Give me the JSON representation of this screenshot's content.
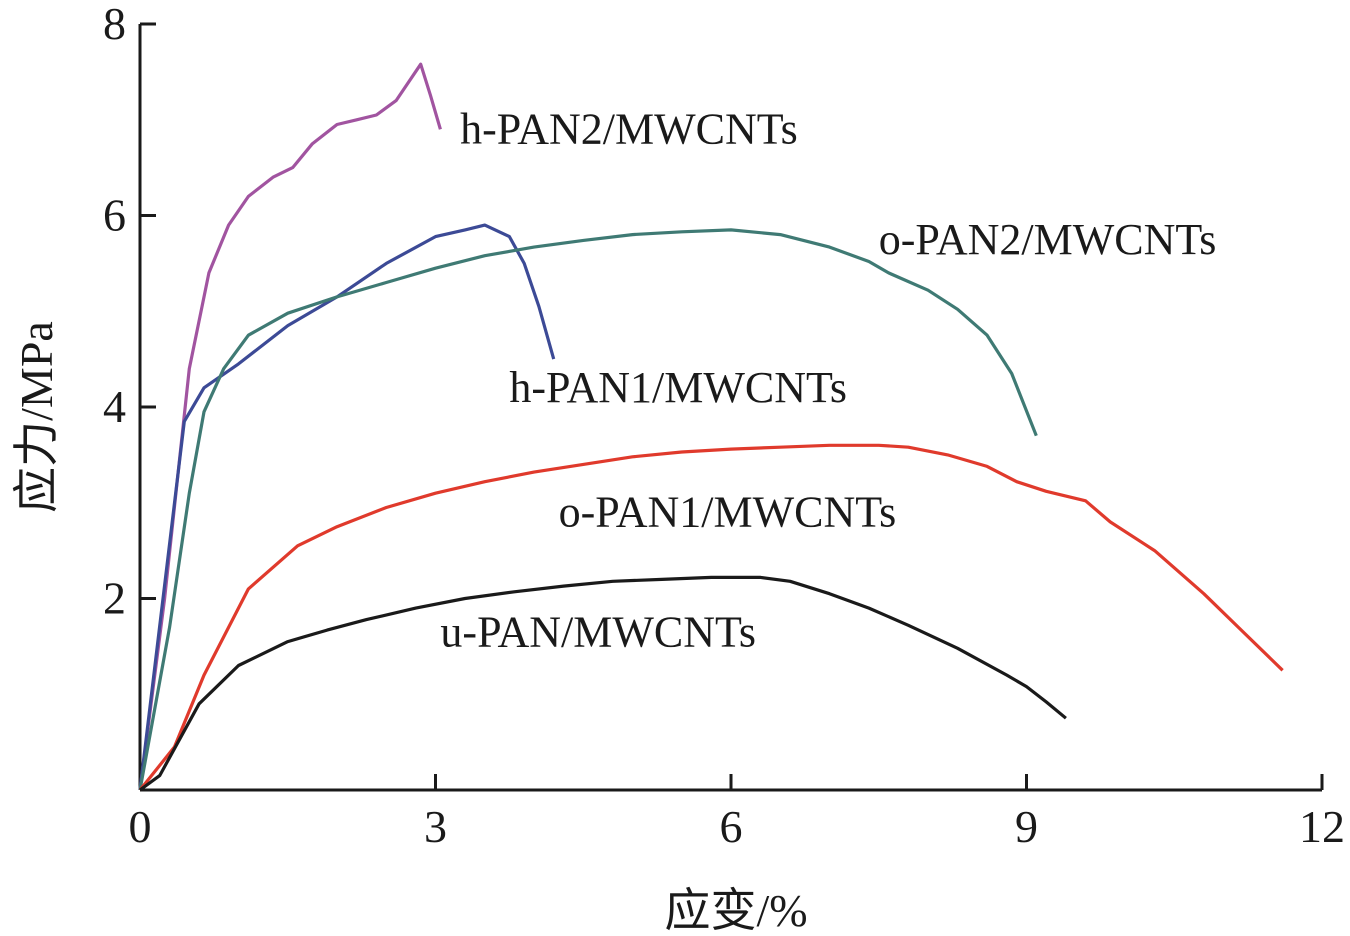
{
  "chart_data": {
    "type": "line",
    "title": "",
    "xlabel": "应变/%",
    "ylabel": "应力/MPa",
    "xlim": [
      0,
      12
    ],
    "ylim": [
      0,
      8
    ],
    "xticks": [
      0,
      3,
      6,
      9,
      12
    ],
    "yticks": [
      2,
      4,
      6,
      8
    ],
    "x_origin_label": "0",
    "grid": false,
    "legend": "inline labels",
    "series": [
      {
        "name": "h-PAN2/MWCNTs",
        "color": "#a154a0",
        "label_at": [
          3.25,
          6.75
        ],
        "points": [
          [
            0,
            0
          ],
          [
            0.25,
            2.0
          ],
          [
            0.5,
            4.4
          ],
          [
            0.7,
            5.4
          ],
          [
            0.9,
            5.9
          ],
          [
            1.1,
            6.2
          ],
          [
            1.35,
            6.4
          ],
          [
            1.55,
            6.5
          ],
          [
            1.75,
            6.75
          ],
          [
            2.0,
            6.95
          ],
          [
            2.2,
            7.0
          ],
          [
            2.4,
            7.05
          ],
          [
            2.6,
            7.2
          ],
          [
            2.85,
            7.58
          ],
          [
            2.95,
            7.25
          ],
          [
            3.05,
            6.9
          ]
        ]
      },
      {
        "name": "h-PAN1/MWCNTs",
        "color": "#3c4a96",
        "label_at": [
          3.75,
          4.05
        ],
        "points": [
          [
            0,
            0
          ],
          [
            0.45,
            3.85
          ],
          [
            0.65,
            4.2
          ],
          [
            1.0,
            4.45
          ],
          [
            1.5,
            4.85
          ],
          [
            2.0,
            5.15
          ],
          [
            2.5,
            5.5
          ],
          [
            3.0,
            5.78
          ],
          [
            3.3,
            5.85
          ],
          [
            3.5,
            5.9
          ],
          [
            3.75,
            5.78
          ],
          [
            3.9,
            5.5
          ],
          [
            4.05,
            5.05
          ],
          [
            4.2,
            4.5
          ]
        ]
      },
      {
        "name": "o-PAN2/MWCNTs",
        "color": "#3f7a74",
        "label_at": [
          7.5,
          5.6
        ],
        "points": [
          [
            0,
            0
          ],
          [
            0.3,
            1.7
          ],
          [
            0.5,
            3.1
          ],
          [
            0.65,
            3.95
          ],
          [
            0.85,
            4.4
          ],
          [
            1.1,
            4.75
          ],
          [
            1.5,
            4.98
          ],
          [
            2.0,
            5.15
          ],
          [
            2.5,
            5.3
          ],
          [
            3.0,
            5.45
          ],
          [
            3.5,
            5.58
          ],
          [
            4.0,
            5.67
          ],
          [
            4.5,
            5.74
          ],
          [
            5.0,
            5.8
          ],
          [
            5.5,
            5.83
          ],
          [
            6.0,
            5.85
          ],
          [
            6.5,
            5.8
          ],
          [
            7.0,
            5.67
          ],
          [
            7.4,
            5.52
          ],
          [
            7.6,
            5.4
          ],
          [
            8.0,
            5.22
          ],
          [
            8.3,
            5.02
          ],
          [
            8.6,
            4.75
          ],
          [
            8.85,
            4.35
          ],
          [
            9.1,
            3.7
          ]
        ]
      },
      {
        "name": "o-PAN1/MWCNTs",
        "color": "#e03a2c",
        "label_at": [
          4.25,
          2.75
        ],
        "points": [
          [
            0,
            0
          ],
          [
            0.35,
            0.45
          ],
          [
            0.65,
            1.2
          ],
          [
            1.1,
            2.1
          ],
          [
            1.6,
            2.55
          ],
          [
            2.0,
            2.75
          ],
          [
            2.5,
            2.95
          ],
          [
            3.0,
            3.1
          ],
          [
            3.5,
            3.22
          ],
          [
            4.0,
            3.32
          ],
          [
            4.5,
            3.4
          ],
          [
            5.0,
            3.48
          ],
          [
            5.5,
            3.53
          ],
          [
            6.0,
            3.56
          ],
          [
            6.5,
            3.58
          ],
          [
            7.0,
            3.6
          ],
          [
            7.5,
            3.6
          ],
          [
            7.8,
            3.58
          ],
          [
            8.2,
            3.5
          ],
          [
            8.6,
            3.38
          ],
          [
            8.9,
            3.22
          ],
          [
            9.2,
            3.12
          ],
          [
            9.6,
            3.02
          ],
          [
            9.85,
            2.8
          ],
          [
            10.3,
            2.5
          ],
          [
            10.8,
            2.05
          ],
          [
            11.2,
            1.65
          ],
          [
            11.6,
            1.25
          ]
        ]
      },
      {
        "name": "u-PAN/MWCNTs",
        "color": "#1a1a1a",
        "label_at": [
          3.05,
          1.5
        ],
        "points": [
          [
            0,
            0
          ],
          [
            0.2,
            0.15
          ],
          [
            0.6,
            0.9
          ],
          [
            1.0,
            1.3
          ],
          [
            1.5,
            1.55
          ],
          [
            1.9,
            1.67
          ],
          [
            2.3,
            1.78
          ],
          [
            2.8,
            1.9
          ],
          [
            3.3,
            2.0
          ],
          [
            3.8,
            2.07
          ],
          [
            4.3,
            2.13
          ],
          [
            4.8,
            2.18
          ],
          [
            5.3,
            2.2
          ],
          [
            5.8,
            2.22
          ],
          [
            6.3,
            2.22
          ],
          [
            6.6,
            2.18
          ],
          [
            7.0,
            2.05
          ],
          [
            7.4,
            1.9
          ],
          [
            7.8,
            1.72
          ],
          [
            8.3,
            1.48
          ],
          [
            8.8,
            1.2
          ],
          [
            9.0,
            1.08
          ],
          [
            9.2,
            0.92
          ],
          [
            9.4,
            0.75
          ]
        ]
      }
    ]
  }
}
